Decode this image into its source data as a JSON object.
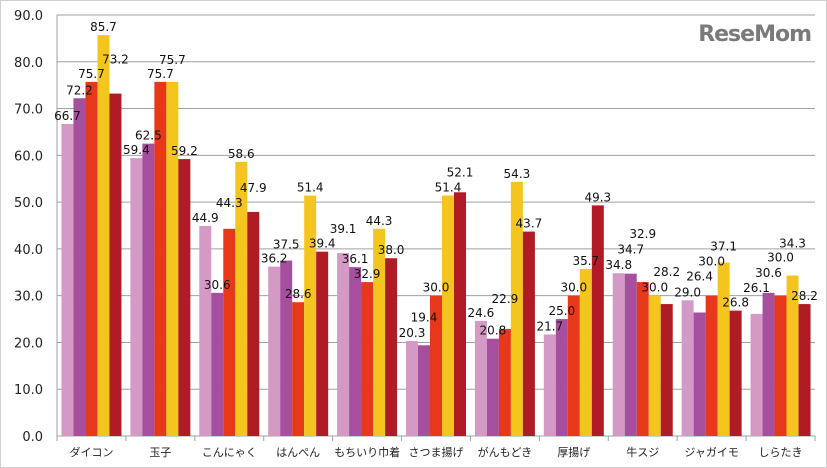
{
  "chart_data": {
    "type": "bar",
    "title": "",
    "xlabel": "",
    "ylabel": "",
    "ylim": [
      0,
      90
    ],
    "yticks": [
      "0.0",
      "10.0",
      "20.0",
      "30.0",
      "40.0",
      "50.0",
      "60.0",
      "70.0",
      "80.0",
      "90.0"
    ],
    "grid": true,
    "categories": [
      "ダイコン",
      "玉子",
      "こんにゃく",
      "はんぺん",
      "もちいり巾着",
      "さつま揚げ",
      "がんもどき",
      "厚揚げ",
      "牛スジ",
      "ジャガイモ",
      "しらたき"
    ],
    "series": [
      {
        "color": "#d49ac6",
        "values": [
          66.7,
          59.4,
          44.9,
          36.2,
          39.1,
          20.3,
          24.6,
          21.7,
          34.8,
          29.0,
          26.1
        ]
      },
      {
        "color": "#a64f9e",
        "values": [
          72.2,
          62.5,
          30.6,
          37.5,
          36.1,
          19.4,
          20.8,
          25.0,
          34.7,
          26.4,
          30.6
        ]
      },
      {
        "color": "#e8381b",
        "values": [
          75.7,
          75.7,
          44.3,
          28.6,
          32.9,
          30.0,
          22.9,
          30.0,
          32.9,
          30.0,
          30.0
        ]
      },
      {
        "color": "#f5c51f",
        "values": [
          85.7,
          75.7,
          58.6,
          51.4,
          44.3,
          51.4,
          54.3,
          35.7,
          30.0,
          37.1,
          34.3
        ]
      },
      {
        "color": "#b01c26",
        "values": [
          73.2,
          59.2,
          47.9,
          39.4,
          38.0,
          52.1,
          43.7,
          49.3,
          28.2,
          26.8,
          28.2
        ]
      }
    ]
  },
  "watermark": "ReseMom"
}
